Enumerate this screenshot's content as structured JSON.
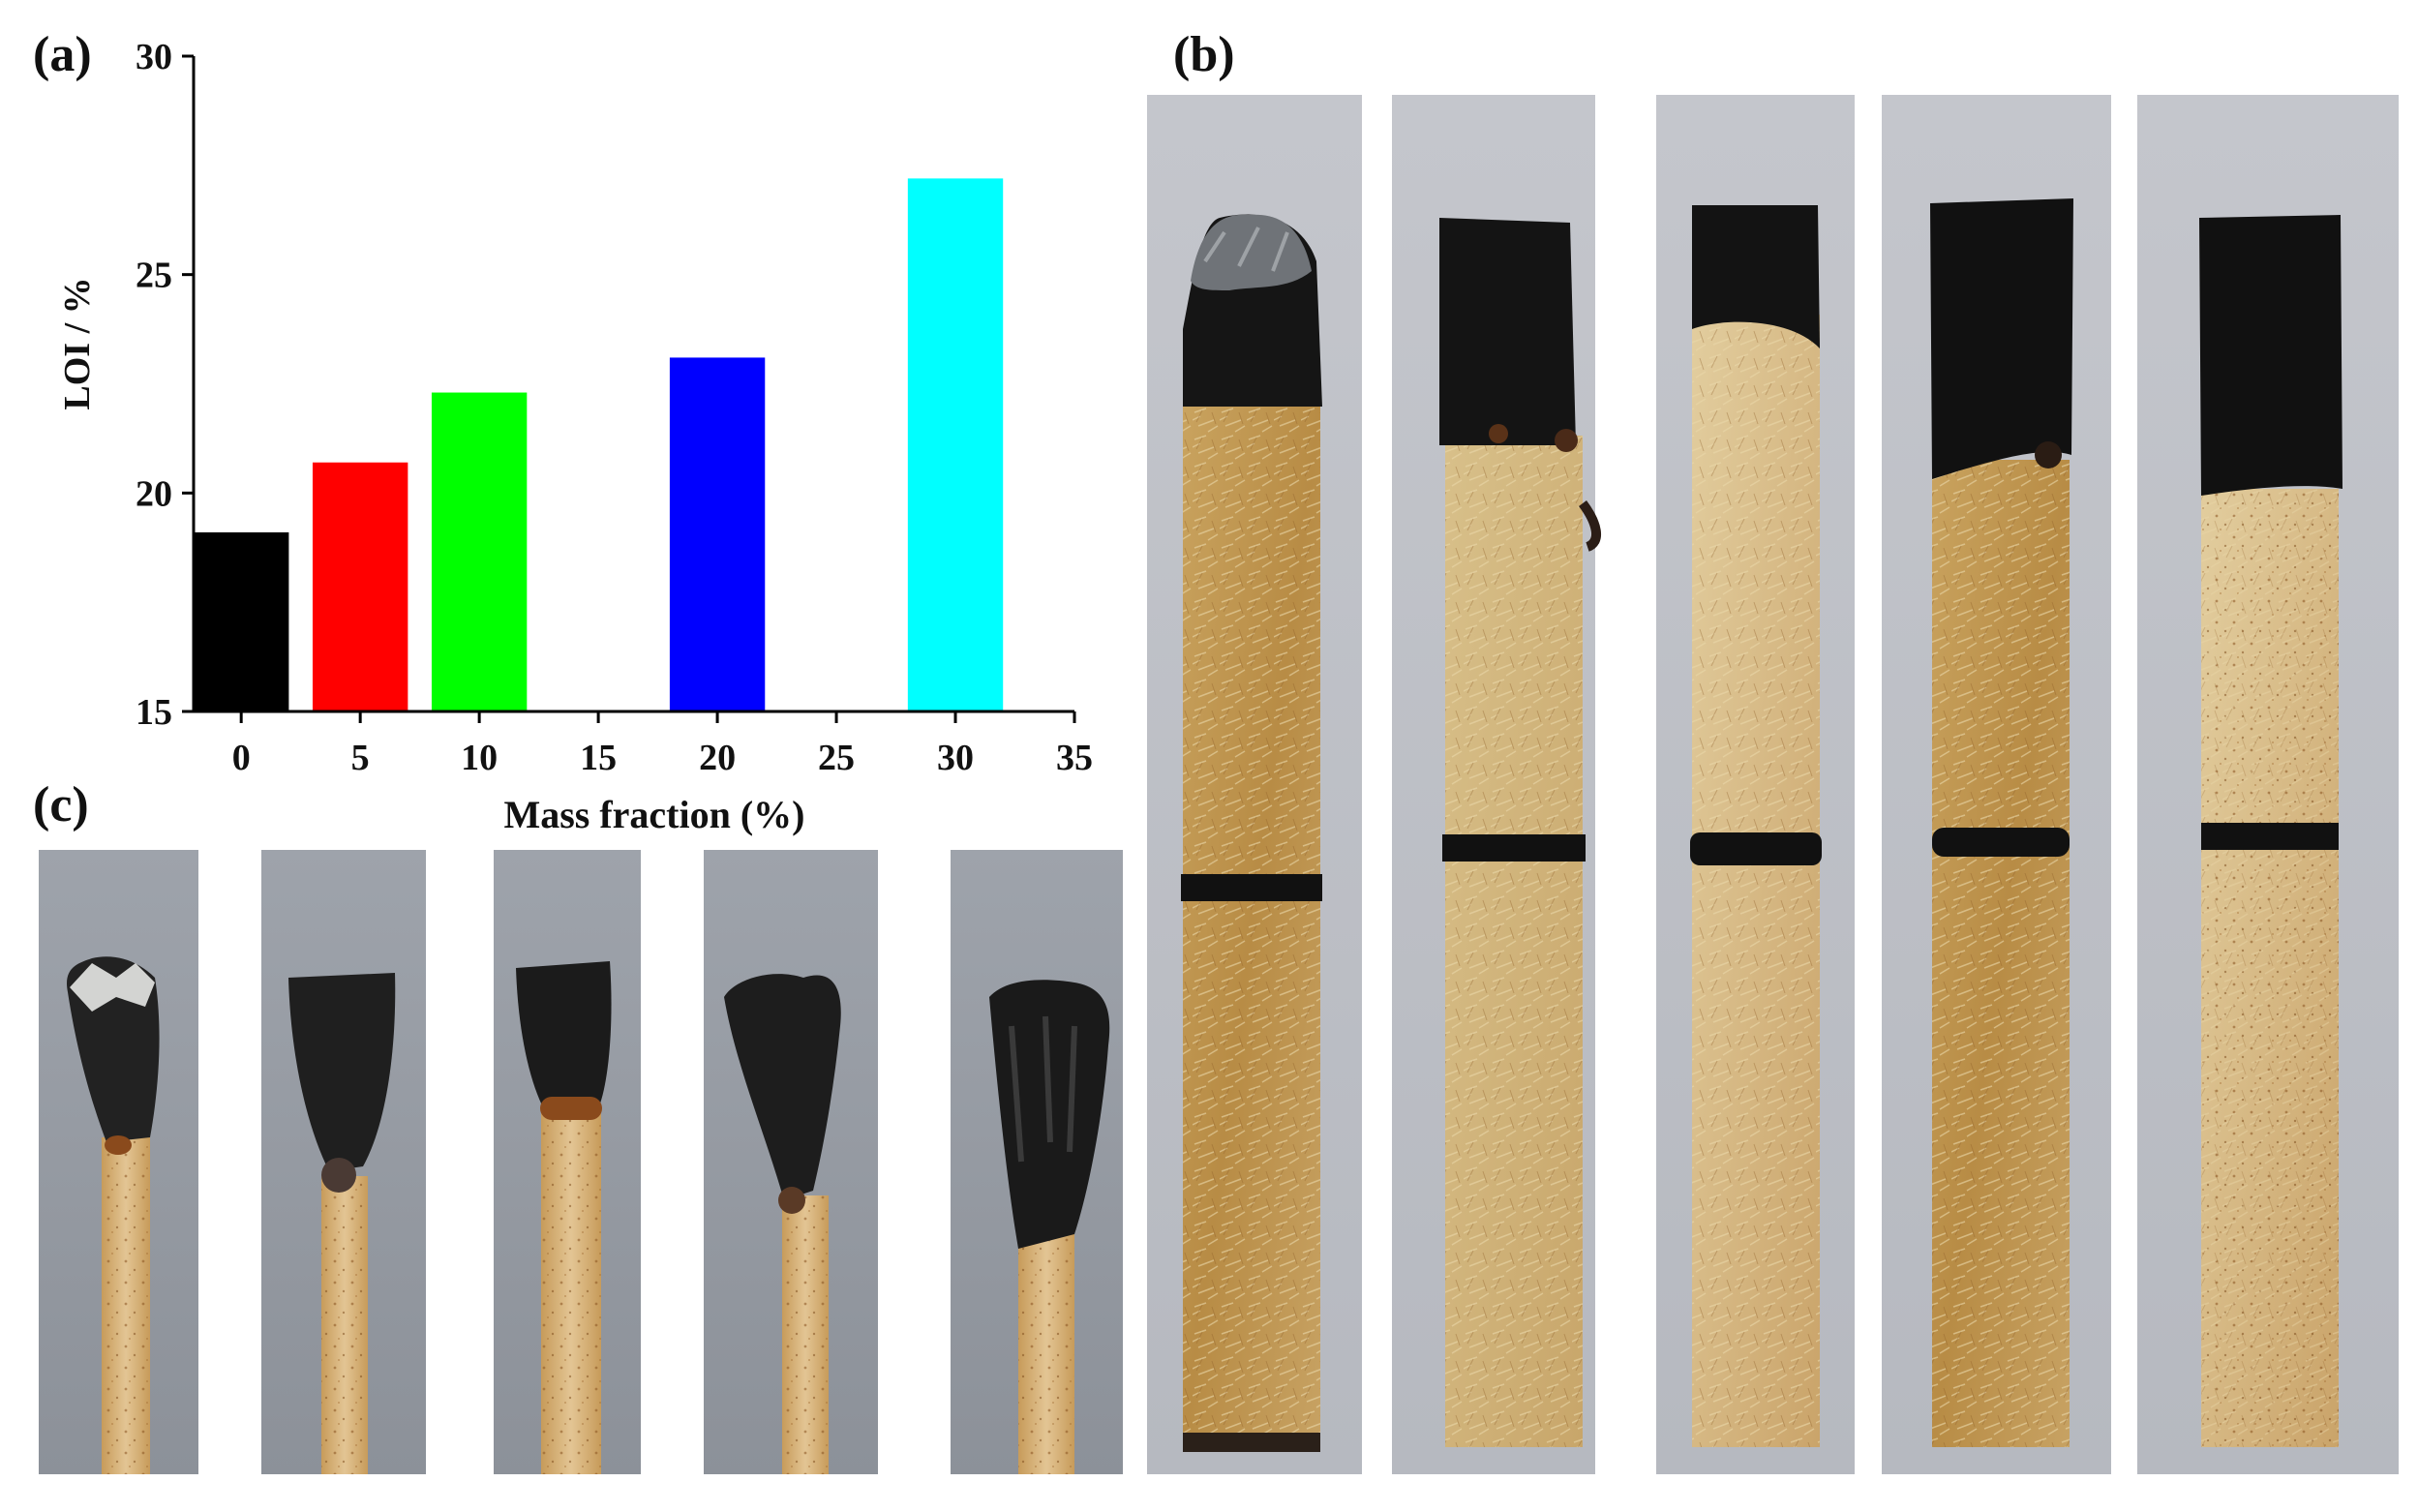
{
  "panels": {
    "a_label": "(a)",
    "b_label": "(b)",
    "c_label": "(c)"
  },
  "chart_data": {
    "type": "bar",
    "title": "",
    "xlabel": "Mass fraction (%)",
    "ylabel": "LOI / %",
    "xlim": [
      -2,
      35
    ],
    "ylim": [
      15,
      30
    ],
    "x_ticks": [
      0,
      5,
      10,
      15,
      20,
      25,
      30,
      35
    ],
    "y_ticks": [
      15,
      20,
      25,
      30
    ],
    "grid": false,
    "legend": "none",
    "bars": [
      {
        "x": 0,
        "value": 19.1,
        "color": "#000000"
      },
      {
        "x": 5,
        "value": 20.7,
        "color": "#ff0000"
      },
      {
        "x": 10,
        "value": 22.3,
        "color": "#00ff00"
      },
      {
        "x": 20,
        "value": 23.1,
        "color": "#0000ff"
      },
      {
        "x": 30,
        "value": 27.2,
        "color": "#00ffff"
      }
    ]
  },
  "photos_b": [
    {
      "kind": "top-burnt-strip",
      "index": 1
    },
    {
      "kind": "top-burnt-strip",
      "index": 2
    },
    {
      "kind": "top-burnt-strip",
      "index": 3
    },
    {
      "kind": "top-burnt-strip",
      "index": 4
    },
    {
      "kind": "top-burnt-strip",
      "index": 5
    }
  ],
  "photos_c": [
    {
      "kind": "charred-tip-strip",
      "index": 1
    },
    {
      "kind": "charred-tip-strip",
      "index": 2
    },
    {
      "kind": "charred-tip-strip",
      "index": 3
    },
    {
      "kind": "charred-tip-strip",
      "index": 4
    },
    {
      "kind": "charred-tip-strip",
      "index": 5
    }
  ]
}
